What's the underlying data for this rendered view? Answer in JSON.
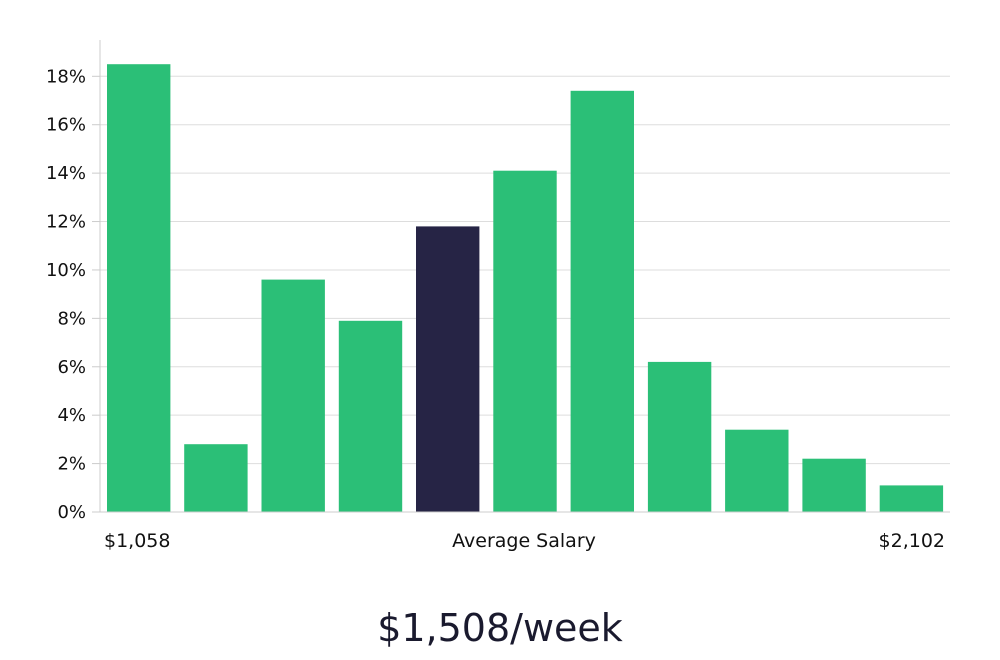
{
  "chart_data": {
    "type": "bar",
    "values": [
      18.5,
      2.8,
      9.6,
      7.9,
      11.8,
      14.1,
      17.4,
      6.2,
      3.4,
      2.2,
      1.1
    ],
    "highlight_index": 4,
    "y_ticks": [
      "0%",
      "2%",
      "4%",
      "6%",
      "8%",
      "10%",
      "12%",
      "14%",
      "16%",
      "18%"
    ],
    "ylim": [
      0,
      19.5
    ],
    "grid": true,
    "x_labels": {
      "left": "$1,058",
      "center": "Average Salary",
      "right": "$2,102"
    }
  },
  "colors": {
    "bar": "#2bbf77",
    "highlight": "#262445",
    "grid": "#dddddd",
    "axis": "#cccccc"
  },
  "footer": {
    "salary": "$1,508/week"
  }
}
